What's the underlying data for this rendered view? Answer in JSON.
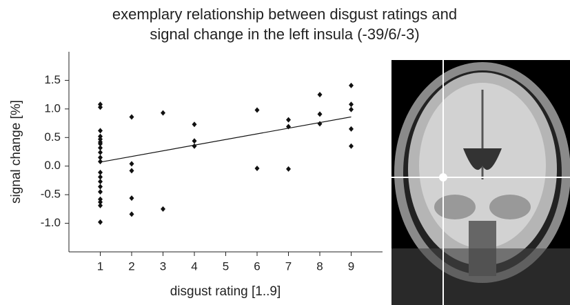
{
  "chart_data": {
    "type": "scatter",
    "title_lines": [
      "exemplary relationship between disgust ratings and",
      "signal change in the left insula (-39/6/-3)"
    ],
    "x_label": "disgust rating [1..9]",
    "y_label": "signal change [%]",
    "xlim": [
      0,
      10
    ],
    "xticks": [
      1,
      2,
      3,
      4,
      5,
      6,
      7,
      8,
      9
    ],
    "ylim": [
      -1.5,
      2.0
    ],
    "yticks": [
      {
        "value": -1.0,
        "label": "-1.0"
      },
      -0.5,
      {
        "value": 0.0,
        "label": "0.0"
      },
      0.5,
      {
        "value": 1.0,
        "label": "1.0"
      },
      1.5
    ],
    "color": "#111111",
    "x": [
      1,
      1,
      1,
      1,
      1,
      1,
      1,
      1,
      1,
      1,
      1,
      1,
      1,
      1,
      1,
      1,
      1,
      1,
      1,
      1,
      2,
      2,
      2,
      2,
      2,
      3,
      3,
      4,
      4,
      4,
      6,
      6,
      7,
      7,
      7,
      8,
      8,
      8,
      9,
      9,
      9,
      9,
      9
    ],
    "y": [
      1.08,
      1.03,
      0.62,
      0.52,
      0.47,
      0.42,
      0.39,
      0.32,
      0.24,
      0.15,
      0.08,
      -0.11,
      -0.19,
      -0.27,
      -0.36,
      -0.45,
      -0.58,
      -0.63,
      -0.69,
      -0.98,
      0.86,
      0.04,
      -0.08,
      -0.56,
      -0.84,
      0.93,
      -0.75,
      0.73,
      0.44,
      0.35,
      0.98,
      -0.04,
      0.81,
      0.69,
      -0.05,
      1.25,
      0.91,
      0.74,
      1.41,
      1.08,
      0.99,
      0.65,
      0.35
    ],
    "fit": {
      "x": [
        1,
        9
      ],
      "y": [
        0.07,
        0.86
      ]
    }
  }
}
